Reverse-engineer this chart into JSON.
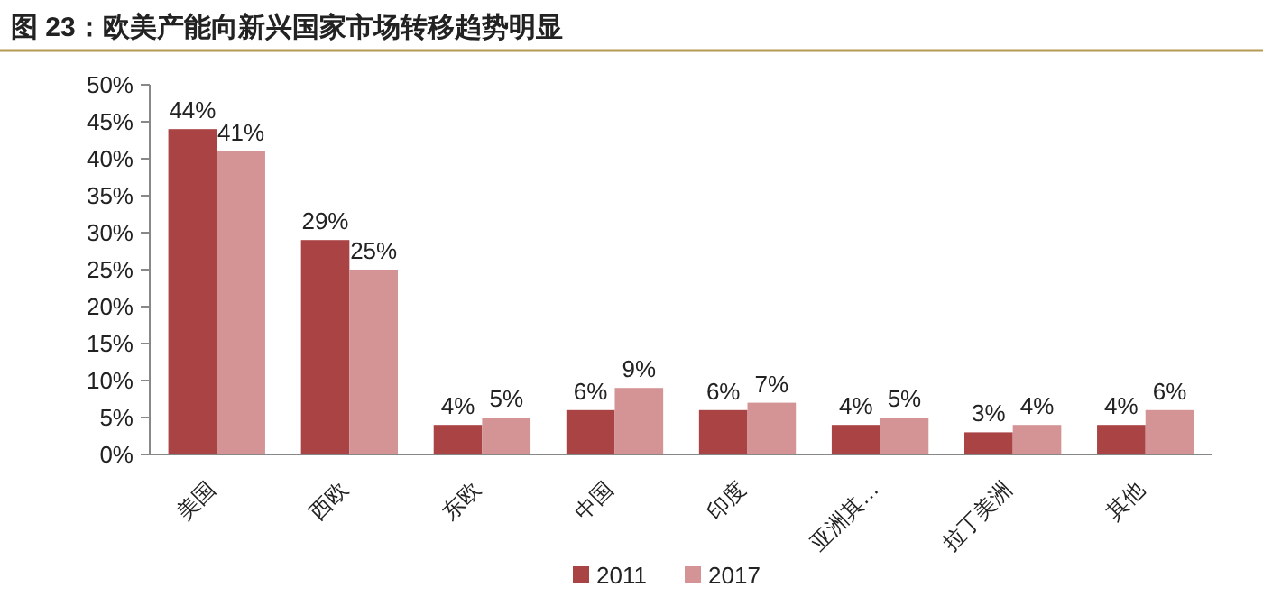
{
  "chart_data": {
    "type": "bar",
    "title": "图 23：欧美产能向新兴国家市场转移趋势明显",
    "categories": [
      "美国",
      "西欧",
      "东欧",
      "中国",
      "印度",
      "亚洲其…",
      "拉丁美洲",
      "其他"
    ],
    "series": [
      {
        "name": "2011",
        "color": "#a94344",
        "values": [
          44,
          29,
          4,
          6,
          6,
          4,
          3,
          4
        ],
        "value_labels": [
          "44%",
          "29%",
          "4%",
          "6%",
          "6%",
          "4%",
          "3%",
          "4%"
        ]
      },
      {
        "name": "2017",
        "color": "#d49394",
        "values": [
          41,
          25,
          5,
          9,
          7,
          5,
          4,
          6
        ],
        "value_labels": [
          "41%",
          "25%",
          "5%",
          "9%",
          "7%",
          "5%",
          "4%",
          "6%"
        ]
      }
    ],
    "ylim": [
      0,
      50
    ],
    "yticks": [
      {
        "value": 0,
        "label": "0%"
      },
      {
        "value": 5,
        "label": "5%"
      },
      {
        "value": 10,
        "label": "10%"
      },
      {
        "value": 15,
        "label": "15%"
      },
      {
        "value": 20,
        "label": "20%"
      },
      {
        "value": 25,
        "label": "25%"
      },
      {
        "value": 30,
        "label": "30%"
      },
      {
        "value": 35,
        "label": "35%"
      },
      {
        "value": 40,
        "label": "40%"
      },
      {
        "value": 45,
        "label": "45%"
      },
      {
        "value": 50,
        "label": "50%"
      }
    ],
    "legend": "bottom",
    "grid": false
  }
}
